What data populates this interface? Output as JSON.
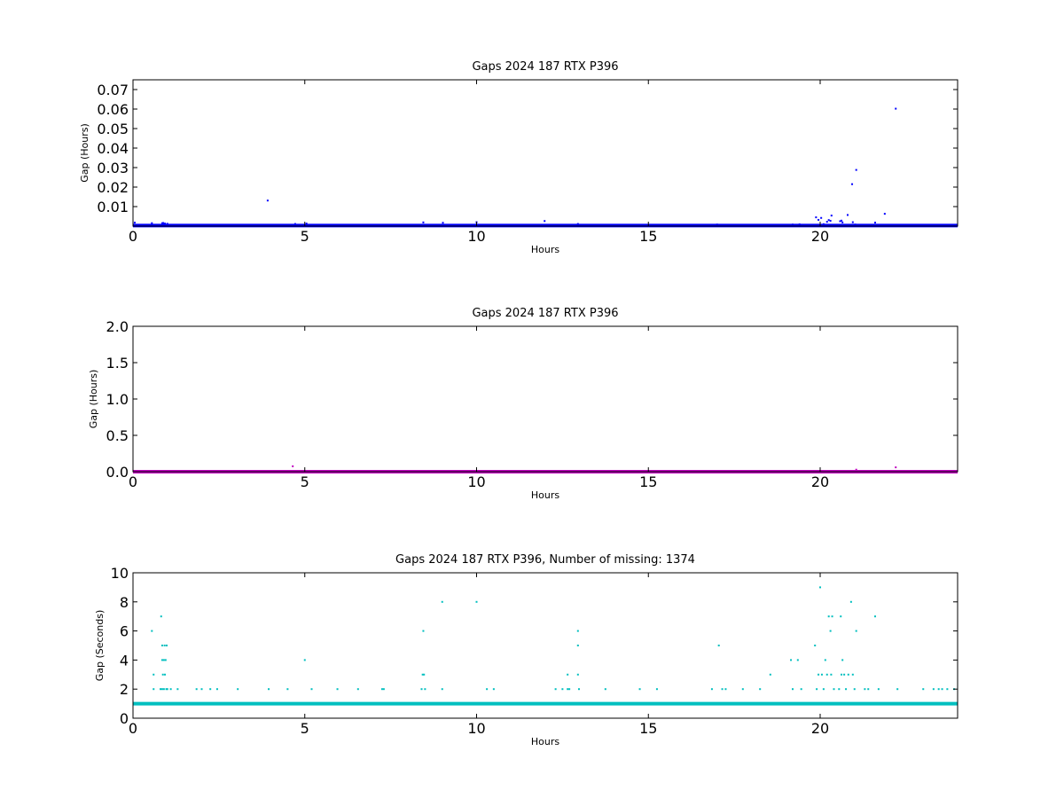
{
  "chart_data": [
    {
      "type": "scatter",
      "title": "Gaps 2024 187 RTX  P396",
      "xlabel": "Hours",
      "ylabel": "Gap (Hours)",
      "xlim": [
        0,
        24
      ],
      "ylim": [
        0,
        0.075
      ],
      "xticks": [
        0,
        5,
        10,
        15,
        20
      ],
      "yticks": [
        0.01,
        0.02,
        0.03,
        0.04,
        0.05,
        0.06,
        0.07
      ],
      "ytick_labels": [
        "0.01",
        "0.02",
        "0.03",
        "0.04",
        "0.05",
        "0.06",
        "0.07"
      ],
      "grid": false,
      "color": "#0000ff",
      "baseline_band": {
        "y": 0.00028,
        "x_range": [
          0,
          24
        ]
      },
      "points": [
        [
          0.05,
          0.0018
        ],
        [
          0.55,
          0.0015
        ],
        [
          0.85,
          0.0015
        ],
        [
          0.88,
          0.0016
        ],
        [
          0.93,
          0.0013
        ],
        [
          1.0,
          0.0012
        ],
        [
          3.92,
          0.0131
        ],
        [
          4.72,
          0.0011
        ],
        [
          5.05,
          0.0013
        ],
        [
          8.45,
          0.0019
        ],
        [
          9.02,
          0.0017
        ],
        [
          10.0,
          0.002
        ],
        [
          11.98,
          0.0026
        ],
        [
          12.95,
          0.0011
        ],
        [
          17.0,
          0.0008
        ],
        [
          19.2,
          0.0008
        ],
        [
          19.4,
          0.0009
        ],
        [
          19.88,
          0.0045
        ],
        [
          19.95,
          0.0032
        ],
        [
          20.03,
          0.0042
        ],
        [
          20.1,
          0.001
        ],
        [
          20.2,
          0.0022
        ],
        [
          20.25,
          0.0031
        ],
        [
          20.3,
          0.0027
        ],
        [
          20.33,
          0.0054
        ],
        [
          20.58,
          0.0025
        ],
        [
          20.62,
          0.0028
        ],
        [
          20.65,
          0.0019
        ],
        [
          20.8,
          0.0057
        ],
        [
          20.95,
          0.002
        ],
        [
          20.93,
          0.0215
        ],
        [
          21.02,
          0.0008
        ],
        [
          21.05,
          0.0288
        ],
        [
          21.6,
          0.0018
        ],
        [
          21.88,
          0.0063
        ],
        [
          22.2,
          0.0602
        ]
      ]
    },
    {
      "type": "scatter",
      "title": "Gaps 2024 187 RTX  P396",
      "xlabel": "Hours",
      "ylabel": "Gap (Hours)",
      "xlim": [
        0,
        24
      ],
      "ylim": [
        0,
        2.0
      ],
      "xticks": [
        0,
        5,
        10,
        15,
        20
      ],
      "yticks": [
        0.0,
        0.5,
        1.0,
        1.5,
        2.0
      ],
      "ytick_labels": [
        "0.0",
        "0.5",
        "1.0",
        "1.5",
        "2.0"
      ],
      "grid": false,
      "color": "#bf00bf",
      "baseline_band": {
        "y": 0.0003,
        "x_range": [
          0,
          24
        ]
      },
      "points": [
        [
          4.65,
          0.075
        ],
        [
          21.05,
          0.028
        ],
        [
          22.2,
          0.06
        ]
      ]
    },
    {
      "type": "scatter",
      "title": "Gaps 2024 187 RTX  P396, Number of missing: 1374",
      "xlabel": "Hours",
      "ylabel": "Gap (Seconds)",
      "xlim": [
        0,
        24
      ],
      "ylim": [
        0,
        10
      ],
      "xticks": [
        0,
        5,
        10,
        15,
        20
      ],
      "yticks": [
        0,
        2,
        4,
        6,
        8,
        10
      ],
      "ytick_labels": [
        "0",
        "2",
        "4",
        "6",
        "8",
        "10"
      ],
      "grid": false,
      "color": "#00bfbf",
      "baseline_band": {
        "y": 1,
        "x_range": [
          0,
          24
        ]
      },
      "points": [
        [
          0.55,
          6
        ],
        [
          0.6,
          2
        ],
        [
          0.6,
          3
        ],
        [
          0.8,
          2
        ],
        [
          0.82,
          7
        ],
        [
          0.85,
          2
        ],
        [
          0.85,
          4
        ],
        [
          0.85,
          5
        ],
        [
          0.87,
          3
        ],
        [
          0.9,
          2
        ],
        [
          0.9,
          4
        ],
        [
          0.92,
          5
        ],
        [
          0.93,
          3
        ],
        [
          0.95,
          4
        ],
        [
          0.97,
          2
        ],
        [
          0.98,
          5
        ],
        [
          1.0,
          2
        ],
        [
          1.1,
          2
        ],
        [
          1.3,
          2
        ],
        [
          1.85,
          2
        ],
        [
          2.0,
          2
        ],
        [
          2.25,
          2
        ],
        [
          2.45,
          2
        ],
        [
          3.05,
          2
        ],
        [
          3.95,
          2
        ],
        [
          4.5,
          2
        ],
        [
          5.0,
          4
        ],
        [
          5.2,
          2
        ],
        [
          5.95,
          2
        ],
        [
          6.55,
          2
        ],
        [
          7.25,
          2
        ],
        [
          7.3,
          2
        ],
        [
          8.4,
          2
        ],
        [
          8.43,
          3
        ],
        [
          8.45,
          6
        ],
        [
          8.47,
          3
        ],
        [
          8.5,
          2
        ],
        [
          9.0,
          8
        ],
        [
          9.0,
          2
        ],
        [
          10.0,
          8
        ],
        [
          10.3,
          2
        ],
        [
          10.5,
          2
        ],
        [
          12.3,
          2
        ],
        [
          12.5,
          2
        ],
        [
          12.65,
          2
        ],
        [
          12.65,
          3
        ],
        [
          12.7,
          2
        ],
        [
          12.95,
          6
        ],
        [
          12.95,
          5
        ],
        [
          12.95,
          3
        ],
        [
          12.98,
          2
        ],
        [
          13.75,
          2
        ],
        [
          14.75,
          2
        ],
        [
          15.25,
          2
        ],
        [
          16.85,
          2
        ],
        [
          17.05,
          5
        ],
        [
          17.15,
          2
        ],
        [
          17.25,
          2
        ],
        [
          17.75,
          2
        ],
        [
          18.25,
          2
        ],
        [
          18.55,
          3
        ],
        [
          19.15,
          4
        ],
        [
          19.2,
          2
        ],
        [
          19.35,
          4
        ],
        [
          19.45,
          2
        ],
        [
          19.85,
          5
        ],
        [
          19.9,
          2
        ],
        [
          19.95,
          3
        ],
        [
          20.0,
          9
        ],
        [
          20.05,
          3
        ],
        [
          20.1,
          2
        ],
        [
          20.15,
          4
        ],
        [
          20.2,
          3
        ],
        [
          20.25,
          7
        ],
        [
          20.3,
          6
        ],
        [
          20.32,
          3
        ],
        [
          20.35,
          7
        ],
        [
          20.4,
          2
        ],
        [
          20.55,
          2
        ],
        [
          20.6,
          7
        ],
        [
          20.62,
          3
        ],
        [
          20.65,
          4
        ],
        [
          20.7,
          3
        ],
        [
          20.75,
          2
        ],
        [
          20.82,
          3
        ],
        [
          20.9,
          8
        ],
        [
          20.95,
          3
        ],
        [
          21.0,
          2
        ],
        [
          21.05,
          6
        ],
        [
          21.3,
          2
        ],
        [
          21.4,
          2
        ],
        [
          21.6,
          7
        ],
        [
          21.7,
          2
        ],
        [
          22.25,
          2
        ],
        [
          23.0,
          2
        ],
        [
          23.3,
          2
        ],
        [
          23.45,
          2
        ],
        [
          23.55,
          2
        ],
        [
          23.7,
          2
        ],
        [
          23.9,
          2
        ]
      ]
    }
  ]
}
